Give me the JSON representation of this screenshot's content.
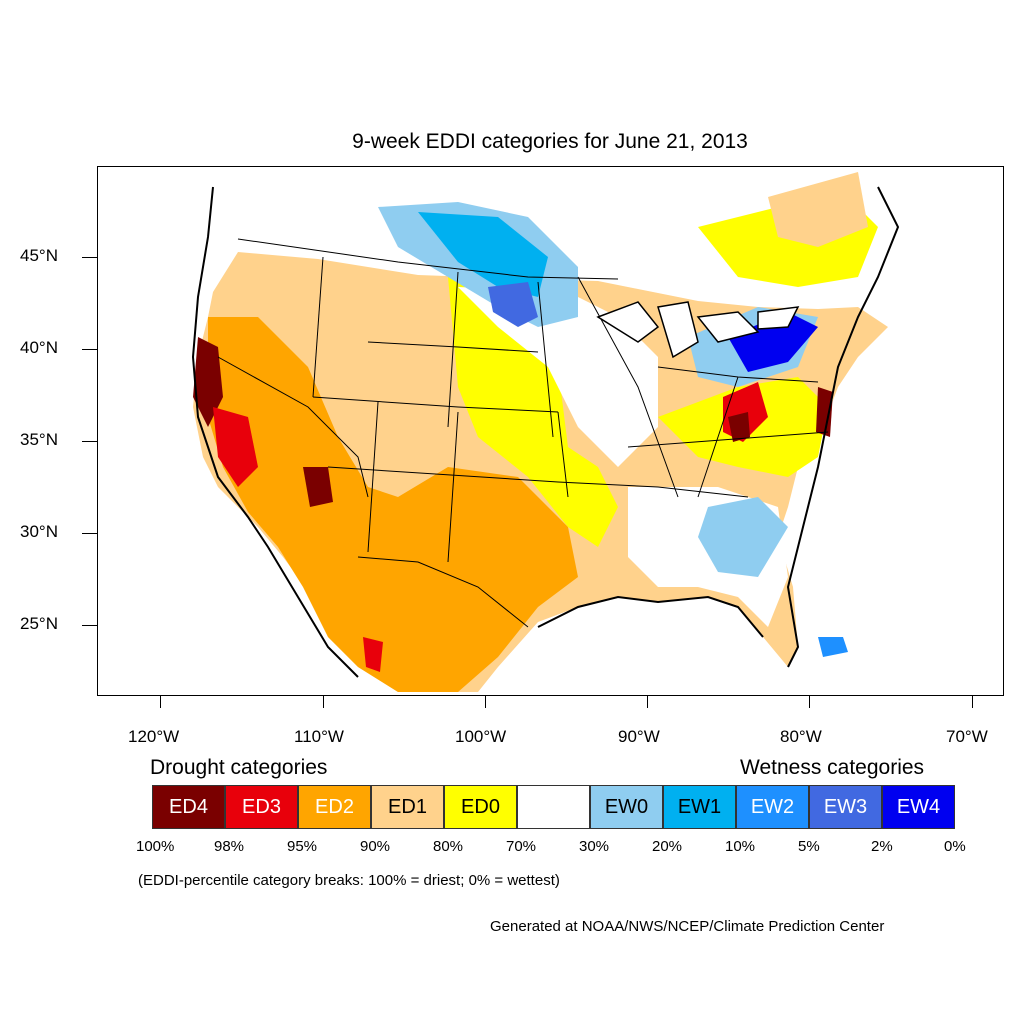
{
  "title": "9-week EDDI categories for June 21, 2013",
  "axes": {
    "lat_labels": [
      "45°N",
      "40°N",
      "35°N",
      "30°N",
      "25°N"
    ],
    "lon_labels": [
      "120°W",
      "110°W",
      "100°W",
      "90°W",
      "80°W",
      "70°W"
    ]
  },
  "legend": {
    "drought_heading": "Drought categories",
    "wetness_heading": "Wetness categories",
    "categories": [
      {
        "label": "ED4",
        "color": "#7a0000",
        "text_color": "#ffffff"
      },
      {
        "label": "ED3",
        "color": "#e8000b",
        "text_color": "#ffffff"
      },
      {
        "label": "ED2",
        "color": "#ffa500",
        "text_color": "#ffffff"
      },
      {
        "label": "ED1",
        "color": "#ffd28c",
        "text_color": "#000000"
      },
      {
        "label": "ED0",
        "color": "#ffff00",
        "text_color": "#000000"
      },
      {
        "label": "",
        "color": "#ffffff",
        "text_color": "#000000"
      },
      {
        "label": "EW0",
        "color": "#8fcdf0",
        "text_color": "#000000"
      },
      {
        "label": "EW1",
        "color": "#00b0f0",
        "text_color": "#000000"
      },
      {
        "label": "EW2",
        "color": "#1e90ff",
        "text_color": "#ffffff"
      },
      {
        "label": "EW3",
        "color": "#4169e1",
        "text_color": "#ffffff"
      },
      {
        "label": "EW4",
        "color": "#0000f0",
        "text_color": "#ffffff"
      }
    ],
    "breaks": [
      "100%",
      "98%",
      "95%",
      "90%",
      "80%",
      "70%",
      "30%",
      "20%",
      "10%",
      "5%",
      "2%",
      "0%"
    ],
    "note": "(EDDI-percentile category breaks: 100% = driest; 0% = wettest)"
  },
  "credit": "Generated at NOAA/NWS/NCEP/Climate Prediction Center"
}
